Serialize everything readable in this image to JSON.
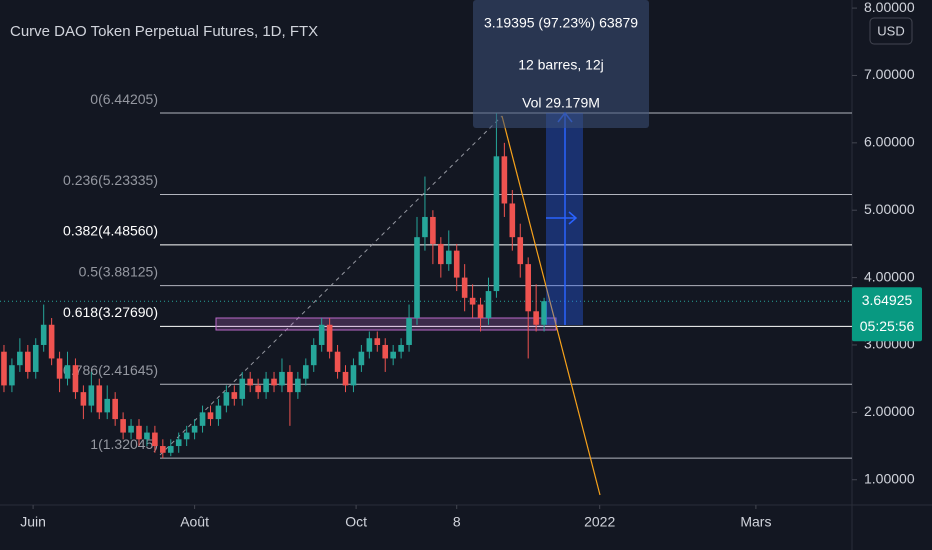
{
  "chart_data": {
    "type": "candlestick",
    "title": "Curve DAO Token Perpetual Futures, 1D, FTX",
    "currency": "USD",
    "colors": {
      "up": "#26a69a",
      "down": "#ef5350"
    },
    "xlim": [
      -12.5,
      309.3
    ],
    "xticks": [
      {
        "value": 0,
        "label": "Juin"
      },
      {
        "value": 61,
        "label": "Août"
      },
      {
        "value": 122,
        "label": "Oct"
      },
      {
        "value": 160,
        "label": "8"
      },
      {
        "value": 214,
        "label": "2022"
      },
      {
        "value": 273,
        "label": "Mars"
      }
    ],
    "ylim": [
      0.625,
      8.12
    ],
    "yticks": [
      {
        "value": 1,
        "label": "1.00000"
      },
      {
        "value": 2,
        "label": "2.00000"
      },
      {
        "value": 3,
        "label": "3.00000"
      },
      {
        "value": 4,
        "label": "4.00000"
      },
      {
        "value": 5,
        "label": "5.00000"
      },
      {
        "value": 6,
        "label": "6.00000"
      },
      {
        "value": 7,
        "label": "7.00000"
      },
      {
        "value": 8,
        "label": "8.00000"
      }
    ],
    "last_price": 3.64925,
    "countdown": "05:25:56",
    "fib_levels": [
      {
        "value": 6.44205,
        "label": "0(6.44205)"
      },
      {
        "value": 5.23335,
        "label": "0.236(5.23335)"
      },
      {
        "value": 4.4856,
        "label": "0.382(4.48560)"
      },
      {
        "value": 3.88125,
        "label": "0.5(3.88125)"
      },
      {
        "value": 3.2769,
        "label": "0.618(3.27690)"
      },
      {
        "value": 2.41645,
        "label": "0.786(2.41645)"
      },
      {
        "value": 1.32045,
        "label": "1(1.32045)"
      }
    ],
    "measure": {
      "line1": "3.19395 (97.23%) 63879",
      "line2": "12 barres, 12j",
      "line3": "Vol 29.179M"
    },
    "x": [
      -11,
      -8,
      -5,
      -2,
      1,
      4,
      7,
      10,
      13,
      16,
      19,
      22,
      25,
      28,
      31,
      34,
      37,
      40,
      43,
      46,
      49,
      52,
      55,
      58,
      61,
      64,
      67,
      70,
      73,
      76,
      79,
      82,
      85,
      88,
      91,
      94,
      97,
      100,
      103,
      106,
      109,
      112,
      115,
      118,
      121,
      124,
      127,
      130,
      133,
      136,
      139,
      142,
      145,
      148,
      151,
      154,
      157,
      160,
      163,
      166,
      169,
      172,
      175,
      178,
      181,
      184,
      187,
      190,
      193
    ],
    "open": [
      2.9,
      2.4,
      2.7,
      2.9,
      2.6,
      3.0,
      3.3,
      2.8,
      2.5,
      2.7,
      2.3,
      2.1,
      2.4,
      2.0,
      2.2,
      1.9,
      1.7,
      1.8,
      1.6,
      1.7,
      1.5,
      1.4,
      1.5,
      1.6,
      1.7,
      1.8,
      2.0,
      1.9,
      2.1,
      2.3,
      2.2,
      2.5,
      2.4,
      2.3,
      2.5,
      2.4,
      2.6,
      2.3,
      2.5,
      2.7,
      3.0,
      3.3,
      2.9,
      2.6,
      2.4,
      2.7,
      2.9,
      3.1,
      3.0,
      2.8,
      2.9,
      3.0,
      3.4,
      4.6,
      4.9,
      4.5,
      4.2,
      4.4,
      4.0,
      3.7,
      3.6,
      3.4,
      3.8,
      5.8,
      5.1,
      4.6,
      4.2,
      3.5,
      3.3
    ],
    "high": [
      3.0,
      2.8,
      3.1,
      3.0,
      3.1,
      3.6,
      3.4,
      2.9,
      2.9,
      2.8,
      2.4,
      2.6,
      2.5,
      2.4,
      2.3,
      2.0,
      1.9,
      1.9,
      1.8,
      1.8,
      1.6,
      1.6,
      1.7,
      1.8,
      1.9,
      2.1,
      2.1,
      2.2,
      2.4,
      2.4,
      2.6,
      2.6,
      2.5,
      2.6,
      2.6,
      2.8,
      2.7,
      2.6,
      2.8,
      3.1,
      3.4,
      3.4,
      3.0,
      2.7,
      2.8,
      3.0,
      3.2,
      3.2,
      3.1,
      3.0,
      3.1,
      3.6,
      4.9,
      5.5,
      5.0,
      4.6,
      4.7,
      4.5,
      4.2,
      3.9,
      3.7,
      4.0,
      6.44,
      6.0,
      5.3,
      4.8,
      4.3,
      3.9,
      3.7
    ],
    "low": [
      2.3,
      2.3,
      2.6,
      2.5,
      2.5,
      2.9,
      2.7,
      2.3,
      2.4,
      2.2,
      1.9,
      2.0,
      1.9,
      1.9,
      1.8,
      1.6,
      1.6,
      1.5,
      1.5,
      1.4,
      1.32,
      1.35,
      1.4,
      1.5,
      1.6,
      1.7,
      1.8,
      1.8,
      2.0,
      2.1,
      2.1,
      2.3,
      2.2,
      2.2,
      2.3,
      2.3,
      1.8,
      2.2,
      2.4,
      2.6,
      2.9,
      2.8,
      2.5,
      2.3,
      2.3,
      2.6,
      2.8,
      2.9,
      2.6,
      2.7,
      2.8,
      2.9,
      3.3,
      4.4,
      4.2,
      4.0,
      4.1,
      3.8,
      3.5,
      3.4,
      3.2,
      3.3,
      3.7,
      4.9,
      4.4,
      4.0,
      2.8,
      3.2,
      3.2
    ],
    "close": [
      2.4,
      2.7,
      2.9,
      2.6,
      3.0,
      3.3,
      2.8,
      2.5,
      2.7,
      2.3,
      2.1,
      2.4,
      2.0,
      2.2,
      1.9,
      1.7,
      1.8,
      1.6,
      1.7,
      1.5,
      1.4,
      1.5,
      1.6,
      1.7,
      1.8,
      2.0,
      1.9,
      2.1,
      2.3,
      2.2,
      2.5,
      2.4,
      2.3,
      2.5,
      2.4,
      2.6,
      2.3,
      2.5,
      2.7,
      3.0,
      3.3,
      2.9,
      2.6,
      2.4,
      2.7,
      2.9,
      3.1,
      3.0,
      2.8,
      2.9,
      3.0,
      3.4,
      4.6,
      4.9,
      4.5,
      4.2,
      4.4,
      4.0,
      3.7,
      3.6,
      3.4,
      3.8,
      5.8,
      5.1,
      4.6,
      4.2,
      3.5,
      3.3,
      3.65
    ]
  }
}
